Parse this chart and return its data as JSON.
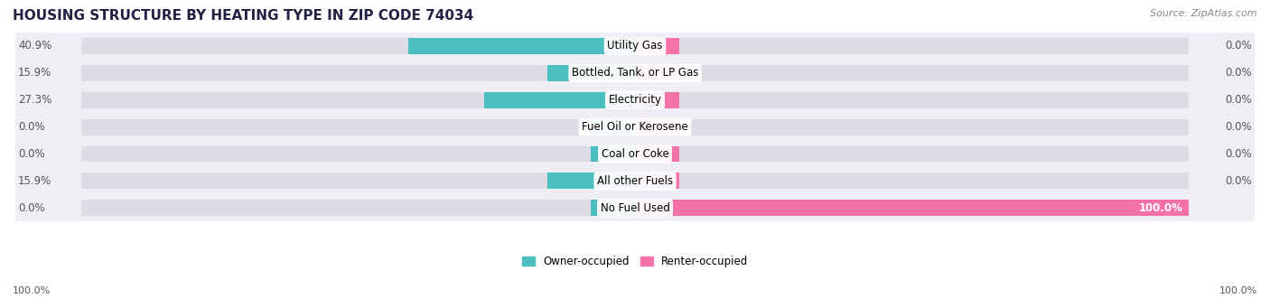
{
  "title": "HOUSING STRUCTURE BY HEATING TYPE IN ZIP CODE 74034",
  "source": "Source: ZipAtlas.com",
  "categories": [
    "Utility Gas",
    "Bottled, Tank, or LP Gas",
    "Electricity",
    "Fuel Oil or Kerosene",
    "Coal or Coke",
    "All other Fuels",
    "No Fuel Used"
  ],
  "owner_values": [
    40.9,
    15.9,
    27.3,
    0.0,
    0.0,
    15.9,
    0.0
  ],
  "renter_values": [
    0.0,
    0.0,
    0.0,
    0.0,
    0.0,
    0.0,
    100.0
  ],
  "owner_color": "#4BBFBF",
  "renter_color": "#F472A8",
  "bar_bg_color": "#DCDCE4",
  "row_bg_color": "#EEEEF4",
  "row_bg_alt": "#E4E4EA",
  "title_fontsize": 11,
  "label_fontsize": 8.5,
  "source_fontsize": 8,
  "axis_label_fontsize": 8,
  "max_value": 100.0,
  "stub_size": 8.0,
  "left_axis_label": "100.0%",
  "right_axis_label": "100.0%",
  "legend_owner": "Owner-occupied",
  "legend_renter": "Renter-occupied"
}
